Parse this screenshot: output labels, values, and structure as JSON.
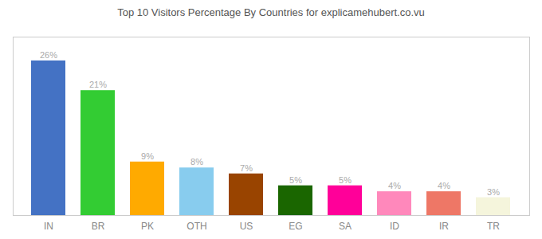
{
  "chart_data": {
    "type": "bar",
    "title": "Top 10 Visitors Percentage By Countries for explicamehubert.co.vu",
    "categories": [
      "IN",
      "BR",
      "PK",
      "OTH",
      "US",
      "EG",
      "SA",
      "ID",
      "IR",
      "TR"
    ],
    "values": [
      26,
      21,
      9,
      8,
      7,
      5,
      5,
      4,
      4,
      3
    ],
    "value_labels": [
      "26%",
      "21%",
      "9%",
      "8%",
      "7%",
      "5%",
      "5%",
      "4%",
      "4%",
      "3%"
    ],
    "colors": [
      "#4472c4",
      "#33cc33",
      "#ffaa00",
      "#88ccee",
      "#994400",
      "#1a6600",
      "#ff0099",
      "#ff88bb",
      "#ee7766",
      "#f5f5dc"
    ],
    "ylim": [
      0,
      30
    ],
    "grid": false,
    "data_labels": true,
    "tick_labels": "x"
  }
}
